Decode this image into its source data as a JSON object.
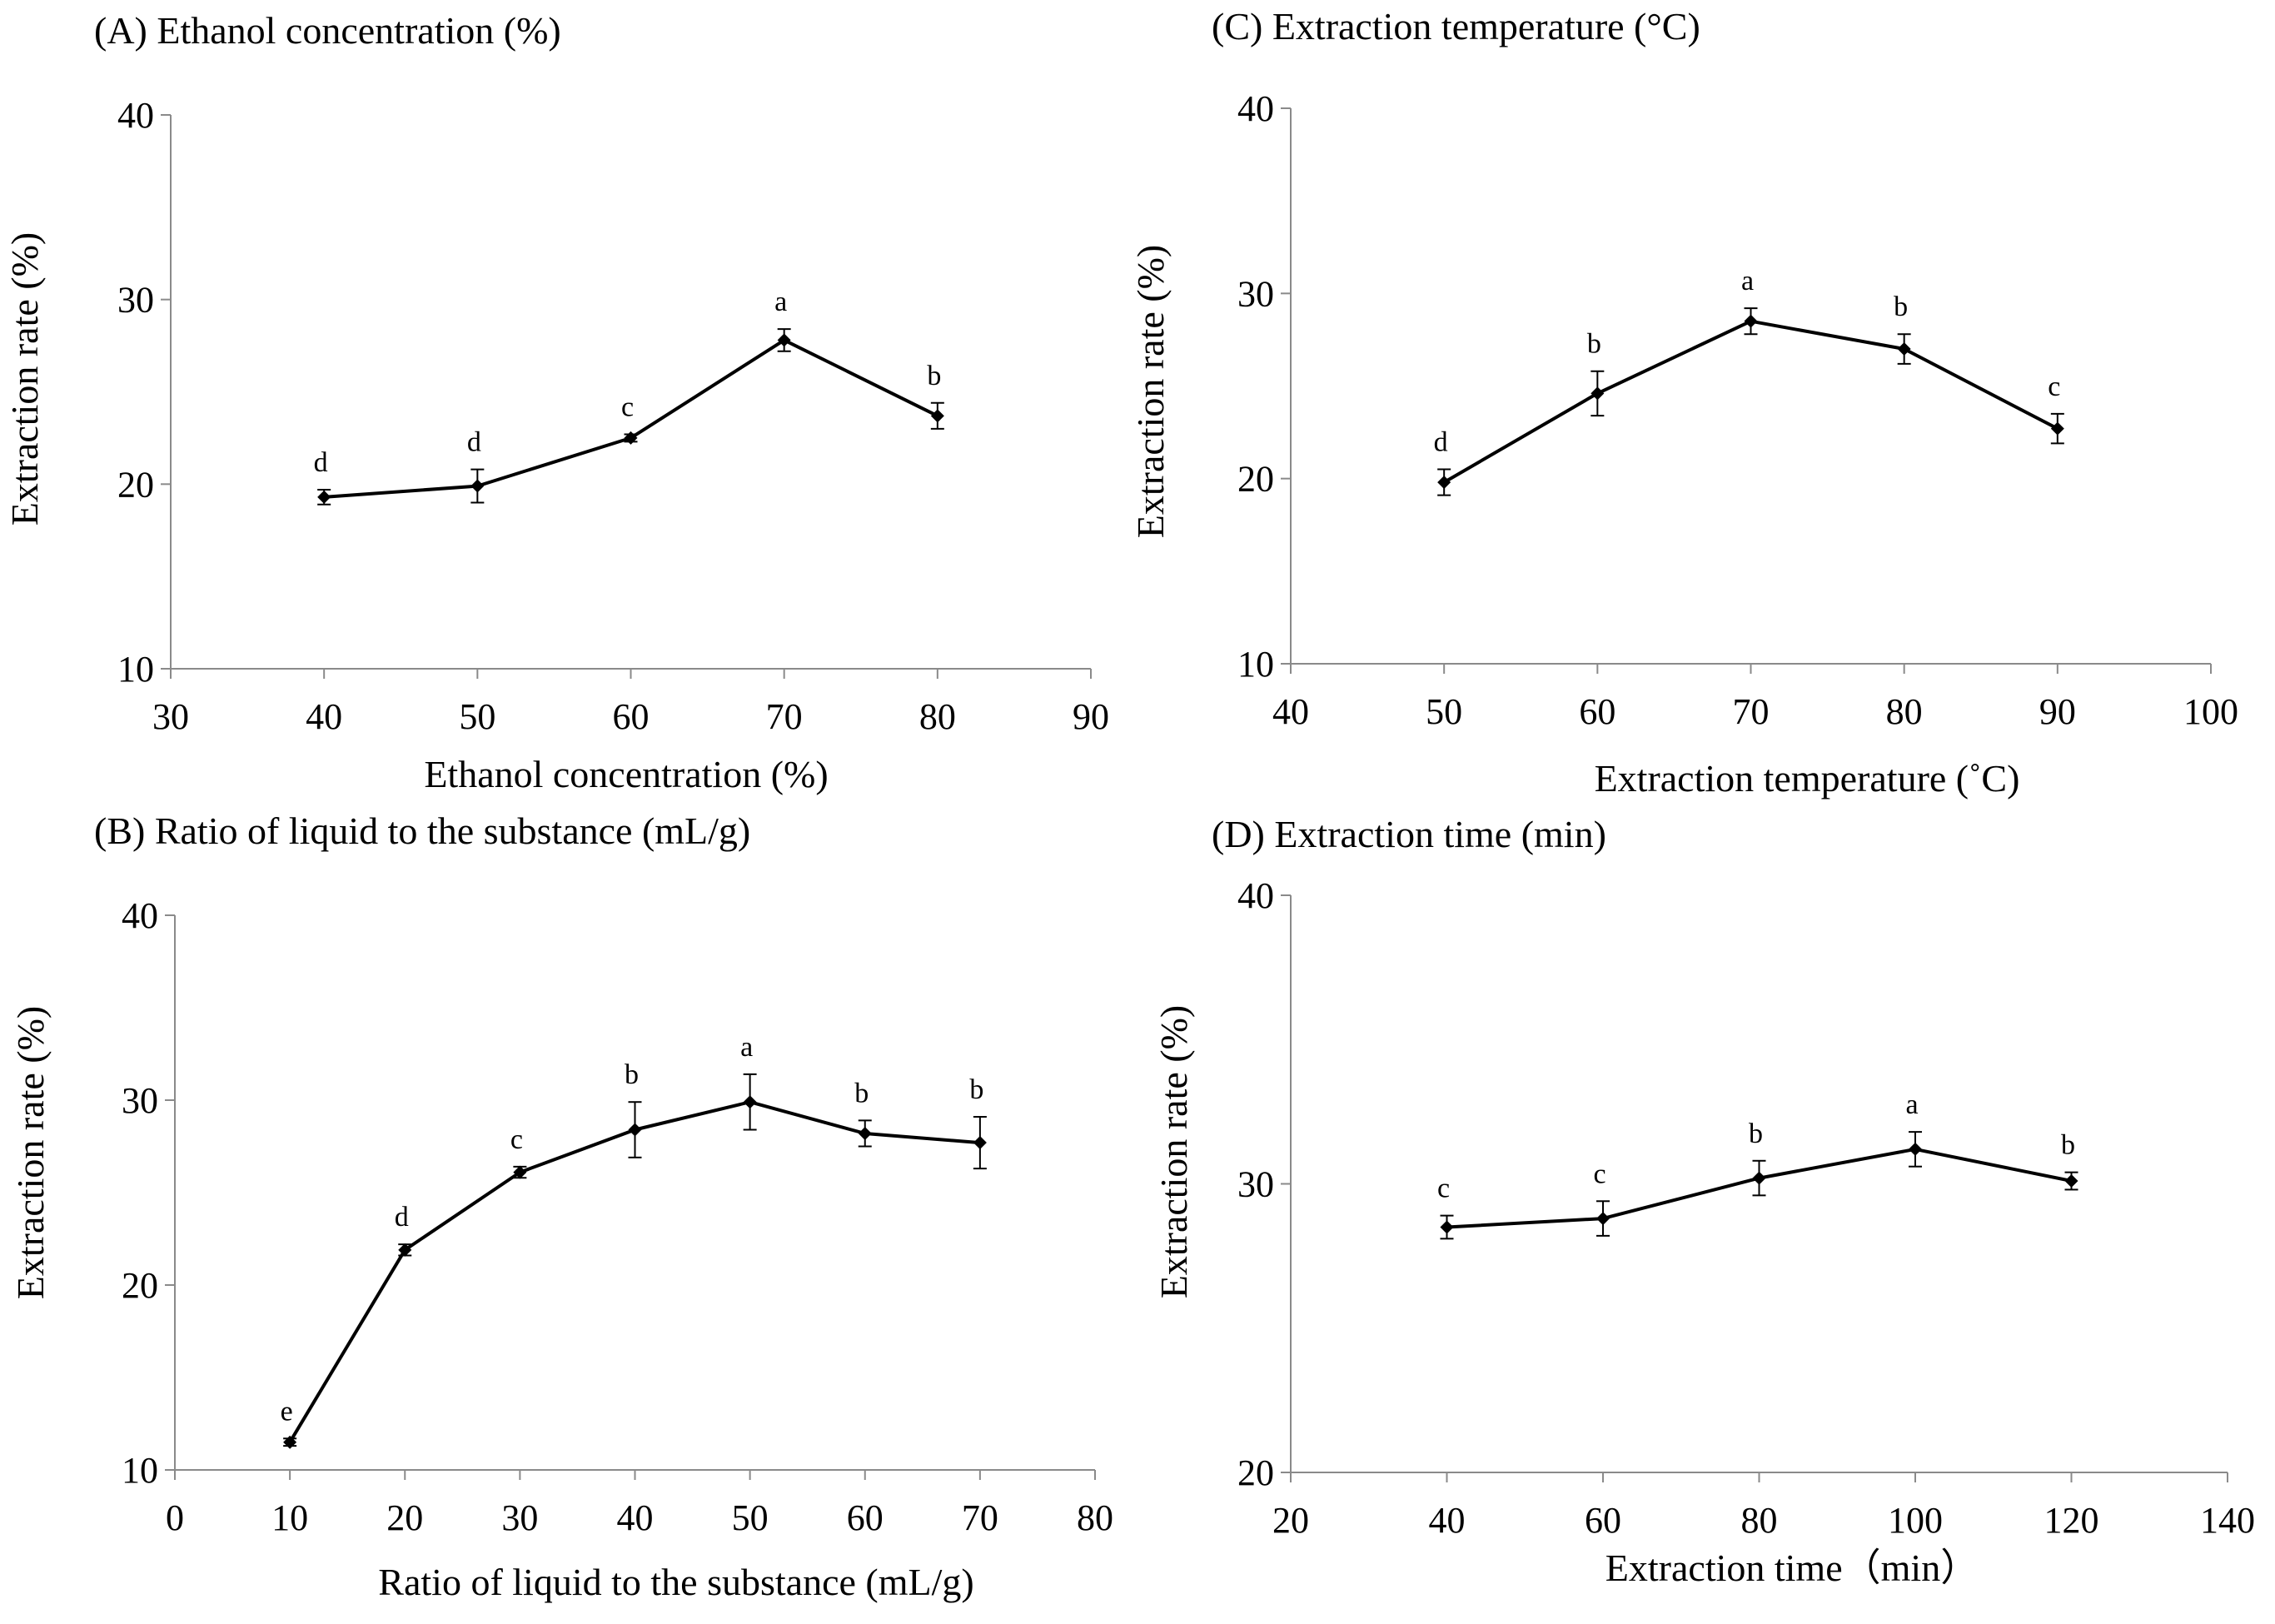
{
  "chart_data": [
    {
      "panel": "A",
      "type": "line",
      "title": "(A) Ethanol concentration (%)",
      "xlabel": "Ethanol concentration (%)",
      "ylabel": "Extraction rate (%)",
      "xlim": [
        30,
        90
      ],
      "xticks": [
        30,
        40,
        50,
        60,
        70,
        80,
        90
      ],
      "ylim": [
        10,
        40
      ],
      "yticks": [
        10,
        20,
        30,
        40
      ],
      "grid": false,
      "series": [
        {
          "name": "Extraction rate",
          "x": [
            40,
            50,
            60,
            70,
            80
          ],
          "y": [
            19.3,
            19.9,
            22.5,
            27.8,
            23.7
          ],
          "error": [
            0.4,
            0.9,
            0.2,
            0.6,
            0.7
          ],
          "letters": [
            "d",
            "d",
            "c",
            "a",
            "b"
          ]
        }
      ]
    },
    {
      "panel": "B",
      "type": "line",
      "title": "(B) Ratio of liquid to the substance (mL/g)",
      "xlabel": "Ratio of liquid to the substance (mL/g)",
      "ylabel": "Extraction rate (%)",
      "xlim": [
        0,
        80
      ],
      "xticks": [
        0,
        10,
        20,
        30,
        40,
        50,
        60,
        70,
        80
      ],
      "ylim": [
        10,
        40
      ],
      "yticks": [
        10,
        20,
        30,
        40
      ],
      "grid": false,
      "series": [
        {
          "name": "Extraction rate",
          "x": [
            10,
            20,
            30,
            40,
            50,
            60,
            70
          ],
          "y": [
            11.5,
            21.9,
            26.1,
            28.4,
            29.9,
            28.2,
            27.7
          ],
          "error": [
            0.2,
            0.3,
            0.3,
            1.5,
            1.5,
            0.7,
            1.4
          ],
          "letters": [
            "e",
            "d",
            "c",
            "b",
            "a",
            "b",
            "b"
          ]
        }
      ]
    },
    {
      "panel": "C",
      "type": "line",
      "title": "(C) Extraction temperature (°C)",
      "xlabel": "Extraction temperature (˚C)",
      "ylabel": "Extraction rate (%)",
      "xlim": [
        40,
        100
      ],
      "xticks": [
        40,
        50,
        60,
        70,
        80,
        90,
        100
      ],
      "ylim": [
        10,
        40
      ],
      "yticks": [
        10,
        20,
        30,
        40
      ],
      "grid": false,
      "series": [
        {
          "name": "Extraction rate",
          "x": [
            50,
            60,
            70,
            80,
            90
          ],
          "y": [
            19.8,
            24.6,
            28.5,
            27.0,
            22.7
          ],
          "error": [
            0.7,
            1.2,
            0.7,
            0.8,
            0.8
          ],
          "letters": [
            "d",
            "b",
            "a",
            "b",
            "c"
          ]
        }
      ]
    },
    {
      "panel": "D",
      "type": "line",
      "title": "(D) Extraction time (min)",
      "xlabel": "Extraction time（min）",
      "ylabel": "Extraction rate (%)",
      "xlim": [
        20,
        140
      ],
      "xticks": [
        20,
        40,
        60,
        80,
        100,
        120,
        140
      ],
      "ylim": [
        20,
        40
      ],
      "yticks": [
        20,
        30,
        40
      ],
      "grid": false,
      "series": [
        {
          "name": "Extraction rate",
          "x": [
            40,
            60,
            80,
            100,
            120
          ],
          "y": [
            28.5,
            28.8,
            30.2,
            31.2,
            30.1
          ],
          "error": [
            0.4,
            0.6,
            0.6,
            0.6,
            0.3
          ],
          "letters": [
            "c",
            "c",
            "b",
            "a",
            "b"
          ]
        }
      ]
    }
  ]
}
